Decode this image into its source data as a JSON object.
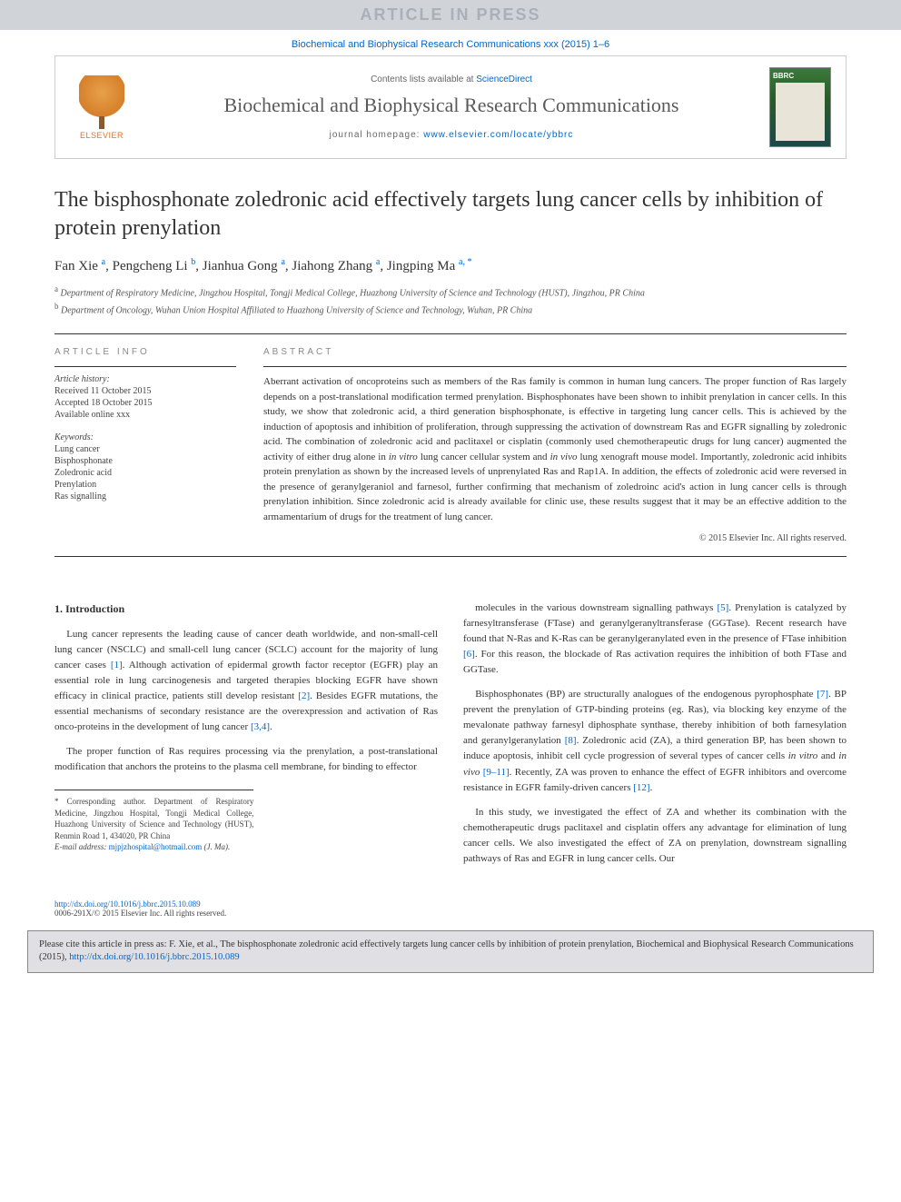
{
  "banner": {
    "text": "ARTICLE IN PRESS"
  },
  "citation_top": "Biochemical and Biophysical Research Communications xxx (2015) 1–6",
  "masthead": {
    "contents_prefix": "Contents lists available at ",
    "contents_link": "ScienceDirect",
    "journal_name": "Biochemical and Biophysical Research Communications",
    "homepage_prefix": "journal homepage: ",
    "homepage_link": "www.elsevier.com/locate/ybbrc",
    "publisher_label": "ELSEVIER"
  },
  "title": "The bisphosphonate zoledronic acid effectively targets lung cancer cells by inhibition of protein prenylation",
  "authors_html": "Fan Xie <sup>a</sup>, Pengcheng Li <sup>b</sup>, Jianhua Gong <sup>a</sup>, Jiahong Zhang <sup>a</sup>, Jingping Ma <sup>a, *</sup>",
  "affiliations": {
    "a": "Department of Respiratory Medicine, Jingzhou Hospital, Tongji Medical College, Huazhong University of Science and Technology (HUST), Jingzhou, PR China",
    "b": "Department of Oncology, Wuhan Union Hospital Affiliated to Huazhong University of Science and Technology, Wuhan, PR China"
  },
  "article_info": {
    "heading": "ARTICLE INFO",
    "history_label": "Article history:",
    "received": "Received 11 October 2015",
    "accepted": "Accepted 18 October 2015",
    "available": "Available online xxx",
    "keywords_label": "Keywords:",
    "keywords": [
      "Lung cancer",
      "Bisphosphonate",
      "Zoledronic acid",
      "Prenylation",
      "Ras signalling"
    ]
  },
  "abstract": {
    "heading": "ABSTRACT",
    "text": "Aberrant activation of oncoproteins such as members of the Ras family is common in human lung cancers. The proper function of Ras largely depends on a post-translational modification termed prenylation. Bisphosphonates have been shown to inhibit prenylation in cancer cells. In this study, we show that zoledronic acid, a third generation bisphosphonate, is effective in targeting lung cancer cells. This is achieved by the induction of apoptosis and inhibition of proliferation, through suppressing the activation of downstream Ras and EGFR signalling by zoledronic acid. The combination of zoledronic acid and paclitaxel or cisplatin (commonly used chemotherapeutic drugs for lung cancer) augmented the activity of either drug alone in in vitro lung cancer cellular system and in vivo lung xenograft mouse model. Importantly, zoledronic acid inhibits protein prenylation as shown by the increased levels of unprenylated Ras and Rap1A. In addition, the effects of zoledronic acid were reversed in the presence of geranylgeraniol and farnesol, further confirming that mechanism of zoledroinc acid's action in lung cancer cells is through prenylation inhibition. Since zoledronic acid is already available for clinic use, these results suggest that it may be an effective addition to the armamentarium of drugs for the treatment of lung cancer.",
    "copyright": "© 2015 Elsevier Inc. All rights reserved."
  },
  "body": {
    "section_heading": "1. Introduction",
    "col1_p1": "Lung cancer represents the leading cause of cancer death worldwide, and non-small-cell lung cancer (NSCLC) and small-cell lung cancer (SCLC) account for the majority of lung cancer cases [1]. Although activation of epidermal growth factor receptor (EGFR) play an essential role in lung carcinogenesis and targeted therapies blocking EGFR have shown efficacy in clinical practice, patients still develop resistant [2]. Besides EGFR mutations, the essential mechanisms of secondary resistance are the overexpression and activation of Ras onco-proteins in the development of lung cancer [3,4].",
    "col1_p2": "The proper function of Ras requires processing via the prenylation, a post-translational modification that anchors the proteins to the plasma cell membrane, for binding to effector",
    "col2_p1": "molecules in the various downstream signalling pathways [5]. Prenylation is catalyzed by farnesyltransferase (FTase) and geranylgeranyltransferase (GGTase). Recent research have found that N-Ras and K-Ras can be geranylgeranylated even in the presence of FTase inhibition [6]. For this reason, the blockade of Ras activation requires the inhibition of both FTase and GGTase.",
    "col2_p2": "Bisphosphonates (BP) are structurally analogues of the endogenous pyrophosphate [7]. BP prevent the prenylation of GTP-binding proteins (eg. Ras), via blocking key enzyme of the mevalonate pathway farnesyl diphosphate synthase, thereby inhibition of both farnesylation and geranylgeranylation [8]. Zoledronic acid (ZA), a third generation BP, has been shown to induce apoptosis, inhibit cell cycle progression of several types of cancer cells in vitro and in vivo [9–11]. Recently, ZA was proven to enhance the effect of EGFR inhibitors and overcome resistance in EGFR family-driven cancers [12].",
    "col2_p3": "In this study, we investigated the effect of ZA and whether its combination with the chemotherapeutic drugs paclitaxel and cisplatin offers any advantage for elimination of lung cancer cells. We also investigated the effect of ZA on prenylation, downstream signalling pathways of Ras and EGFR in lung cancer cells. Our"
  },
  "corr": {
    "star_text": "* Corresponding author. Department of Respiratory Medicine, Jingzhou Hospital, Tongji Medical College, Huazhong University of Science and Technology (HUST), Renmin Road 1, 434020, PR China",
    "email_label": "E-mail address: ",
    "email": "mjpjzhospital@hotmail.com",
    "email_suffix": " (J. Ma)."
  },
  "doi": {
    "link": "http://dx.doi.org/10.1016/j.bbrc.2015.10.089",
    "copyright": "0006-291X/© 2015 Elsevier Inc. All rights reserved."
  },
  "cite_box": {
    "text_prefix": "Please cite this article in press as: F. Xie, et al., The bisphosphonate zoledronic acid effectively targets lung cancer cells by inhibition of protein prenylation, Biochemical and Biophysical Research Communications (2015), ",
    "link": "http://dx.doi.org/10.1016/j.bbrc.2015.10.089"
  },
  "colors": {
    "banner_bg": "#d0d4d8",
    "banner_text": "#a8b0b8",
    "link": "#0066cc",
    "citebox_bg": "#e0e0e4",
    "elsevier_orange": "#e8711a"
  }
}
